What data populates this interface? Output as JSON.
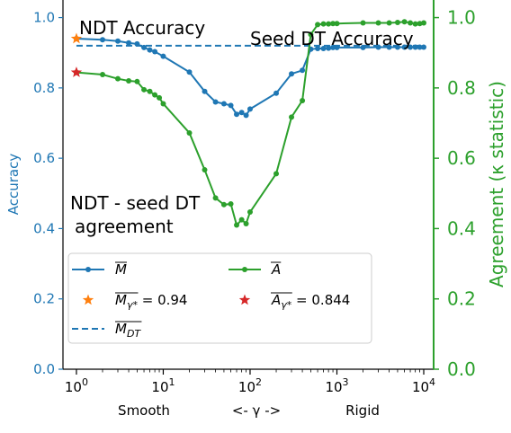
{
  "chart_data": {
    "type": "line",
    "x_scale": "log",
    "xlim": [
      0.7,
      13000
    ],
    "ylim_left": [
      0.0,
      1.05
    ],
    "ylim_right": [
      0.0,
      1.05
    ],
    "ylabel_left": "Accuracy",
    "ylabel_right": "Agreement (κ statistic)",
    "x_ticks": [
      {
        "value": 1,
        "base": "10",
        "exp": "0"
      },
      {
        "value": 10,
        "base": "10",
        "exp": "1"
      },
      {
        "value": 100,
        "base": "10",
        "exp": "2"
      },
      {
        "value": 1000,
        "base": "10",
        "exp": "3"
      },
      {
        "value": 10000,
        "base": "10",
        "exp": "4"
      }
    ],
    "y_ticks_left": [
      "0.0",
      "0.2",
      "0.4",
      "0.6",
      "0.8",
      "1.0"
    ],
    "y_ticks_right": [
      "0.0",
      "0.2",
      "0.4",
      "0.6",
      "0.8",
      "1.0"
    ],
    "x_bottom_labels": {
      "left": "Smooth",
      "center": "<- γ ->",
      "right": "Rigid"
    },
    "annotations": {
      "ndt_accuracy": "NDT Accuracy",
      "seed_dt_accuracy": "Seed DT Accuracy",
      "agreement_line1": "NDT - seed DT",
      "agreement_line2": "agreement"
    },
    "colors": {
      "accuracy": "#1f77b4",
      "agreement": "#2ca02c",
      "best_accuracy": "#ff7f0e",
      "best_agreement": "#d62728"
    },
    "seed_dt_accuracy": 0.92,
    "series": [
      {
        "name": "M",
        "axis": "left",
        "x": [
          1,
          2,
          3,
          4,
          5,
          6,
          7,
          8,
          10,
          20,
          30,
          40,
          50,
          60,
          70,
          80,
          90,
          100,
          200,
          300,
          400,
          500,
          600,
          700,
          800,
          900,
          1000,
          2000,
          3000,
          4000,
          5000,
          6000,
          7000,
          8000,
          9000,
          10000
        ],
        "values": [
          0.94,
          0.937,
          0.933,
          0.928,
          0.925,
          0.915,
          0.908,
          0.903,
          0.89,
          0.845,
          0.79,
          0.76,
          0.755,
          0.75,
          0.725,
          0.73,
          0.722,
          0.74,
          0.785,
          0.84,
          0.85,
          0.91,
          0.912,
          0.912,
          0.913,
          0.915,
          0.915,
          0.915,
          0.916,
          0.916,
          0.916,
          0.916,
          0.916,
          0.916,
          0.916,
          0.916
        ]
      },
      {
        "name": "A",
        "axis": "right",
        "x": [
          1,
          2,
          3,
          4,
          5,
          6,
          7,
          8,
          9,
          10,
          20,
          30,
          40,
          50,
          60,
          70,
          80,
          90,
          100,
          200,
          300,
          400,
          500,
          600,
          700,
          800,
          900,
          1000,
          2000,
          3000,
          4000,
          5000,
          6000,
          7000,
          8000,
          9000,
          10000
        ],
        "values": [
          0.844,
          0.838,
          0.826,
          0.82,
          0.818,
          0.795,
          0.79,
          0.78,
          0.772,
          0.755,
          0.672,
          0.567,
          0.487,
          0.468,
          0.47,
          0.41,
          0.425,
          0.414,
          0.447,
          0.556,
          0.717,
          0.764,
          0.952,
          0.98,
          0.982,
          0.982,
          0.983,
          0.983,
          0.985,
          0.985,
          0.985,
          0.986,
          0.988,
          0.985,
          0.982,
          0.983,
          0.985
        ]
      }
    ],
    "best_points": [
      {
        "name": "M_γ*",
        "x": 1,
        "value": 0.94,
        "axis": "left"
      },
      {
        "name": "A_γ*",
        "x": 1,
        "value": 0.844,
        "axis": "left"
      }
    ],
    "legend": {
      "placement": "lower-left",
      "items": [
        {
          "symbol": "M",
          "suffix": "",
          "style": "line-dot",
          "color": "#1f77b4"
        },
        {
          "symbol": "A",
          "suffix": "",
          "style": "line-dot",
          "color": "#2ca02c"
        },
        {
          "symbol": "M",
          "sub": "γ*",
          "suffix": " = 0.94",
          "style": "star",
          "color": "#ff7f0e"
        },
        {
          "symbol": "A",
          "sub": "γ*",
          "suffix": " = 0.844",
          "style": "star",
          "color": "#d62728"
        },
        {
          "symbol": "M",
          "sub": "DT",
          "suffix": "",
          "style": "dashed",
          "color": "#1f77b4"
        }
      ]
    }
  }
}
